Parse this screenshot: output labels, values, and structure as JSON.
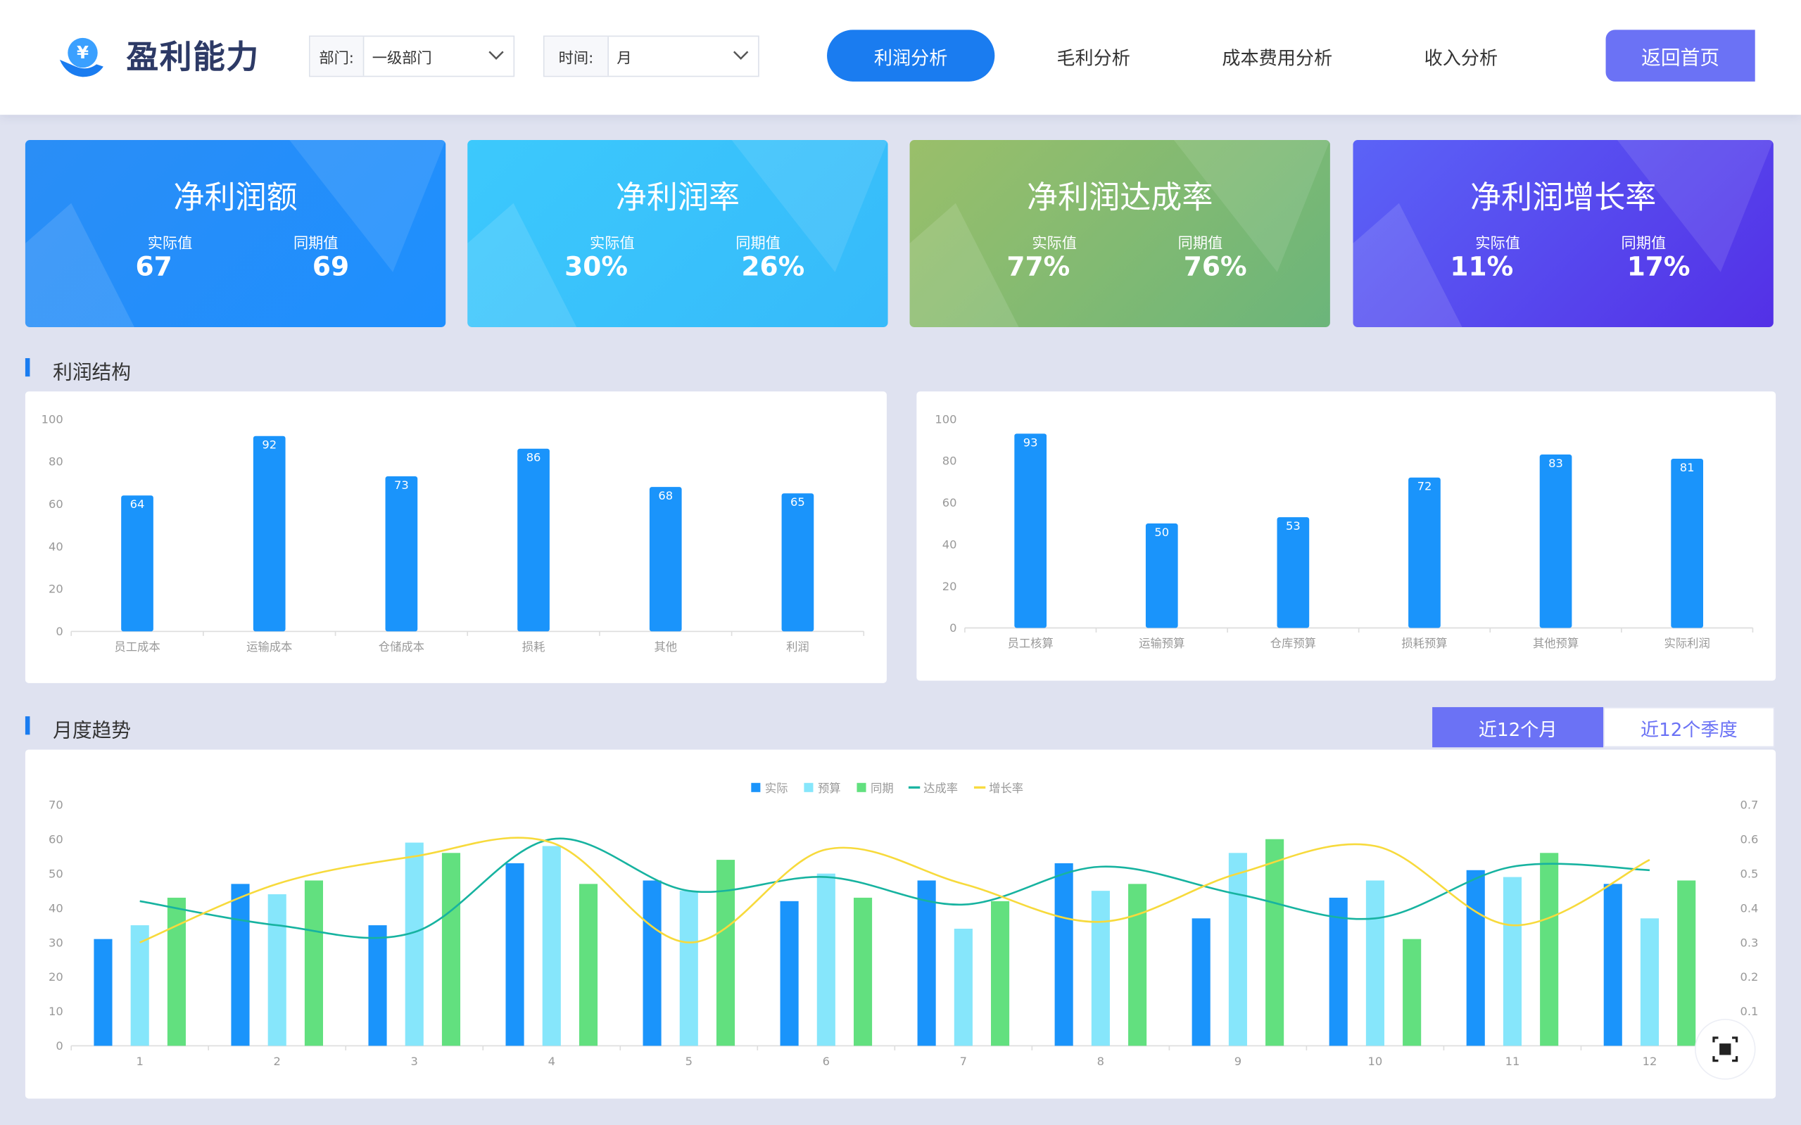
{
  "header": {
    "logo_icon": "¥",
    "title": "盈利能力",
    "filters": [
      {
        "label": "部门:",
        "value": "一级部门"
      },
      {
        "label": "时间:",
        "value": "月"
      }
    ],
    "tabs": [
      "利润分析",
      "毛利分析",
      "成本费用分析",
      "收入分析"
    ],
    "home_button": "返回首页"
  },
  "cards": [
    {
      "title": "净利润额",
      "actual_label": "实际值",
      "actual": "67",
      "prior_label": "同期值",
      "prior": "69"
    },
    {
      "title": "净利润率",
      "actual_label": "实际值",
      "actual": "30%",
      "prior_label": "同期值",
      "prior": "26%"
    },
    {
      "title": "净利润达成率",
      "actual_label": "实际值",
      "actual": "77%",
      "prior_label": "同期值",
      "prior": "76%"
    },
    {
      "title": "净利润增长率",
      "actual_label": "实际值",
      "actual": "11%",
      "prior_label": "同期值",
      "prior": "17%"
    }
  ],
  "sections": {
    "structure": "利润结构",
    "trend": "月度趋势",
    "toggle": [
      "近12个月",
      "近12个季度"
    ]
  },
  "chart_data": [
    {
      "type": "bar",
      "categories": [
        "员工成本",
        "运输成本",
        "仓储成本",
        "损耗",
        "其他",
        "利润"
      ],
      "values": [
        64,
        92,
        73,
        86,
        68,
        65
      ],
      "color": "#1a94fb",
      "ylim": [
        0,
        100
      ],
      "yticks": [
        0,
        20,
        40,
        60,
        80,
        100
      ],
      "grid": false
    },
    {
      "type": "bar",
      "categories": [
        "员工核算",
        "运输预算",
        "仓库预算",
        "损耗预算",
        "其他预算",
        "实际利润"
      ],
      "values": [
        93,
        50,
        53,
        72,
        83,
        81
      ],
      "color": "#1a94fb",
      "ylim": [
        0,
        100
      ],
      "yticks": [
        0,
        20,
        40,
        60,
        80,
        100
      ],
      "grid": false
    },
    {
      "type": "bar",
      "categories": [
        "1",
        "2",
        "3",
        "4",
        "5",
        "6",
        "7",
        "8",
        "9",
        "10",
        "11",
        "12"
      ],
      "legend": "top",
      "grid": false,
      "series": [
        {
          "name": "实际",
          "color": "#1a94fb",
          "values": [
            31,
            47,
            35,
            53,
            48,
            42,
            48,
            53,
            37,
            43,
            51,
            47
          ]
        },
        {
          "name": "预算",
          "color": "#86e6fb",
          "values": [
            35,
            44,
            59,
            58,
            45,
            50,
            34,
            45,
            56,
            48,
            49,
            37
          ]
        },
        {
          "name": "同期",
          "color": "#62e07f",
          "values": [
            43,
            48,
            56,
            47,
            54,
            43,
            42,
            47,
            60,
            31,
            56,
            48
          ]
        },
        {
          "name": "达成率",
          "type": "line",
          "axis": "y2",
          "color": "#17b3a0",
          "values": [
            0.42,
            0.35,
            0.33,
            0.6,
            0.45,
            0.49,
            0.41,
            0.52,
            0.44,
            0.37,
            0.52,
            0.51
          ]
        },
        {
          "name": "增长率",
          "type": "line",
          "axis": "y2",
          "color": "#f7da3c",
          "values": [
            0.3,
            0.47,
            0.55,
            0.59,
            0.3,
            0.57,
            0.47,
            0.36,
            0.5,
            0.58,
            0.35,
            0.54
          ]
        }
      ],
      "ylim": [
        0,
        70
      ],
      "yticks": [
        0,
        10,
        20,
        30,
        40,
        50,
        60,
        70
      ],
      "y2lim": [
        0,
        0.7
      ],
      "y2ticks": [
        0.1,
        0.2,
        0.3,
        0.4,
        0.5,
        0.6,
        0.7
      ]
    }
  ]
}
